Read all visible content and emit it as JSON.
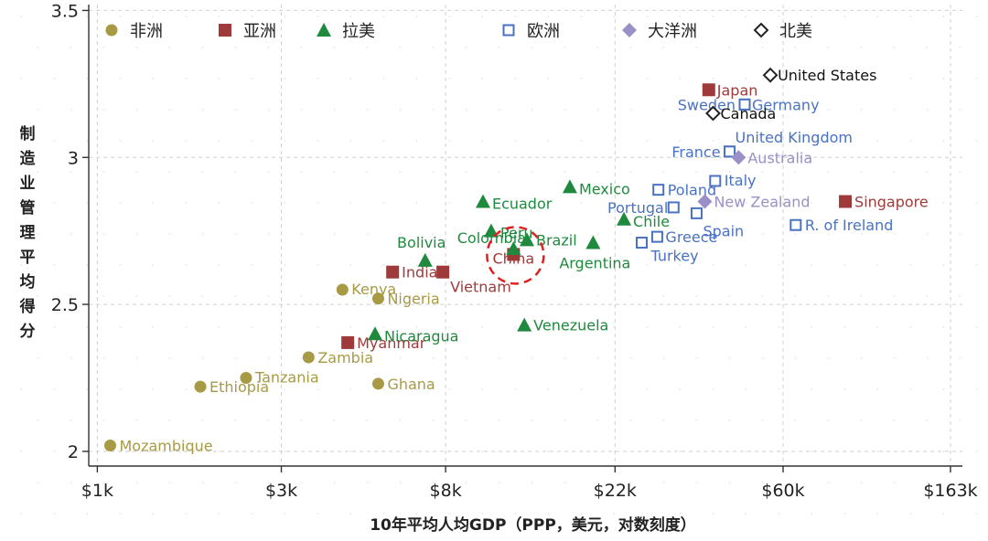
{
  "chart_data": {
    "type": "scatter",
    "xlabel": "10年平均人均GDP（PPP，美元，对数刻度）",
    "ylabel": "制造业管理平均得分",
    "x_scale": "log",
    "xlim": [
      950,
      175000
    ],
    "ylim": [
      1.95,
      3.52
    ],
    "x_ticks": [
      {
        "value": 1000,
        "label": "$1k"
      },
      {
        "value": 3000,
        "label": "$3k"
      },
      {
        "value": 8000,
        "label": "$8k"
      },
      {
        "value": 22000,
        "label": "$22k"
      },
      {
        "value": 60000,
        "label": "$60k"
      },
      {
        "value": 163000,
        "label": "$163k"
      }
    ],
    "y_ticks": [
      {
        "value": 2,
        "label": "2"
      },
      {
        "value": 2.5,
        "label": "2.5"
      },
      {
        "value": 3,
        "label": "3"
      },
      {
        "value": 3.5,
        "label": "3.5"
      }
    ],
    "grid": true,
    "legend_position": "top",
    "series": [
      {
        "name": "非洲",
        "marker": "circle",
        "color": "#a89a45",
        "label_color": "#a89a45",
        "points": [
          {
            "label": "Mozambique",
            "x": 1080,
            "y": 2.02
          },
          {
            "label": "Ethiopia",
            "x": 1850,
            "y": 2.22
          },
          {
            "label": "Tanzania",
            "x": 2430,
            "y": 2.25
          },
          {
            "label": "Zambia",
            "x": 3530,
            "y": 2.32
          },
          {
            "label": "Kenya",
            "x": 4320,
            "y": 2.55
          },
          {
            "label": "Nigeria",
            "x": 5350,
            "y": 2.52
          },
          {
            "label": "Ghana",
            "x": 5350,
            "y": 2.23
          }
        ]
      },
      {
        "name": "亚洲",
        "marker": "square",
        "color": "#9e3a3a",
        "label_color": "#9e3a3a",
        "points": [
          {
            "label": "Myanmar",
            "x": 4460,
            "y": 2.37
          },
          {
            "label": "India",
            "x": 5830,
            "y": 2.61
          },
          {
            "label": "Vietnam",
            "x": 7870,
            "y": 2.61
          },
          {
            "label": "China",
            "x": 12000,
            "y": 2.67
          },
          {
            "label": "Japan",
            "x": 38500,
            "y": 3.23
          },
          {
            "label": "Singapore",
            "x": 87000,
            "y": 2.85
          }
        ]
      },
      {
        "name": "拉美",
        "marker": "triangle",
        "color": "#1f8a3e",
        "label_color": "#1f8a3e",
        "points": [
          {
            "label": "Nicaragua",
            "x": 5250,
            "y": 2.4
          },
          {
            "label": "Bolivia",
            "x": 7080,
            "y": 2.65
          },
          {
            "label": "Ecuador",
            "x": 10000,
            "y": 2.85
          },
          {
            "label": "Peru",
            "x": 10500,
            "y": 2.75
          },
          {
            "label": "Colombia",
            "x": 12000,
            "y": 2.69
          },
          {
            "label": "Venezuela",
            "x": 12800,
            "y": 2.43
          },
          {
            "label": "Brazil",
            "x": 13000,
            "y": 2.72
          },
          {
            "label": "Mexico",
            "x": 16800,
            "y": 2.9
          },
          {
            "label": "Argentina",
            "x": 19300,
            "y": 2.71
          },
          {
            "label": "Chile",
            "x": 23200,
            "y": 2.79
          }
        ]
      },
      {
        "name": "欧洲",
        "marker": "hollow-square",
        "color": "#4a72c2",
        "label_color": "#4a72c2",
        "points": [
          {
            "label": "Turkey",
            "x": 25800,
            "y": 2.71
          },
          {
            "label": "Greece",
            "x": 28300,
            "y": 2.73
          },
          {
            "label": "Poland",
            "x": 28500,
            "y": 2.89
          },
          {
            "label": "Portugal",
            "x": 31200,
            "y": 2.83
          },
          {
            "label": "Spain",
            "x": 35800,
            "y": 2.81
          },
          {
            "label": "Italy",
            "x": 40000,
            "y": 2.92
          },
          {
            "label": "France",
            "x": 43600,
            "y": 3.02
          },
          {
            "label": "Sweden",
            "x": 47700,
            "y": 3.18
          },
          {
            "label": "Germany",
            "x": 47700,
            "y": 3.18
          },
          {
            "label": "United Kingdom",
            "x": 43600,
            "y": 3.02
          },
          {
            "label": "R. of Ireland",
            "x": 64700,
            "y": 2.77
          }
        ]
      },
      {
        "name": "大洋洲",
        "marker": "diamond",
        "color": "#9b8fc8",
        "label_color": "#9b8fc8",
        "points": [
          {
            "label": "Australia",
            "x": 46000,
            "y": 3.0
          },
          {
            "label": "New Zealand",
            "x": 37600,
            "y": 2.85
          }
        ]
      },
      {
        "name": "北美",
        "marker": "hollow-diamond",
        "color": "#222222",
        "label_color": "#111111",
        "points": [
          {
            "label": "United States",
            "x": 55600,
            "y": 3.28
          },
          {
            "label": "Canada",
            "x": 39500,
            "y": 3.15
          }
        ]
      }
    ],
    "annotations": [
      {
        "type": "dashed-circle",
        "target": "China",
        "color": "#e02020"
      }
    ]
  }
}
